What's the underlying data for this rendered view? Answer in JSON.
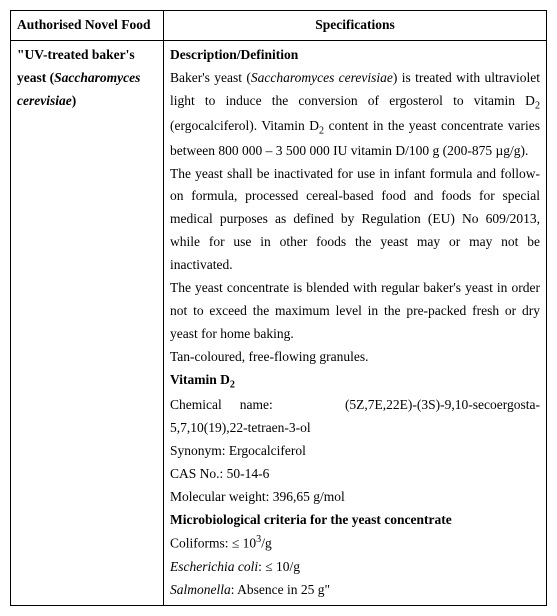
{
  "header": {
    "col1": "Authorised Novel Food",
    "col2": "Specifications"
  },
  "left": {
    "quote_open": "\"",
    "title_part1": "UV-treated baker's yeast (",
    "title_species": "Saccharomyces cerevisiae",
    "title_part2": ")"
  },
  "right": {
    "desc_heading": "Description/Definition",
    "p1a": "Baker's yeast (",
    "p1b": "Saccharomyces cerevisiae",
    "p1c": ") is treated with ultraviolet light to induce the conversion of ergosterol to vitamin D",
    "p1d": " (ergocalciferol). Vitamin D",
    "p1e": " content in the yeast concentrate varies between 800 000 – 3 500 000 IU vitamin D/100 g (200-875 µg/g).",
    "p2": "The yeast shall be inactivated for use in infant formula and follow-on formula, processed cereal-based food and foods for special medical purposes as defined by Regulation (EU) No 609/2013, while for use in other foods the yeast may or may not be inactivated.",
    "p3": "The yeast concentrate is blended with regular baker's yeast in order not to exceed the maximum level in the pre-packed fresh or dry yeast for home baking.",
    "p4": "Tan-coloured, free-flowing granules.",
    "vit_heading_a": "Vitamin D",
    "chem_label": "Chemical name:",
    "chem_value": "(5Z,7E,22E)-(3S)-9,10-secoergosta-5,7,10(19),22-tetraen-3-ol",
    "syn": "Synonym: Ergocalciferol",
    "cas": "CAS No.: 50-14-6",
    "mw": "Molecular weight: 396,65 g/mol",
    "micro_heading": "Microbiological criteria for the yeast concentrate",
    "coliforms_a": "Coliforms: ≤ 10",
    "coliforms_b": "/g",
    "ecoli_a": "Escherichia coli",
    "ecoli_b": ": ≤ 10/g",
    "salm_a": "Salmonella",
    "salm_b": ": Absence in 25 g\"",
    "sub2": "2",
    "sup3": "3"
  }
}
